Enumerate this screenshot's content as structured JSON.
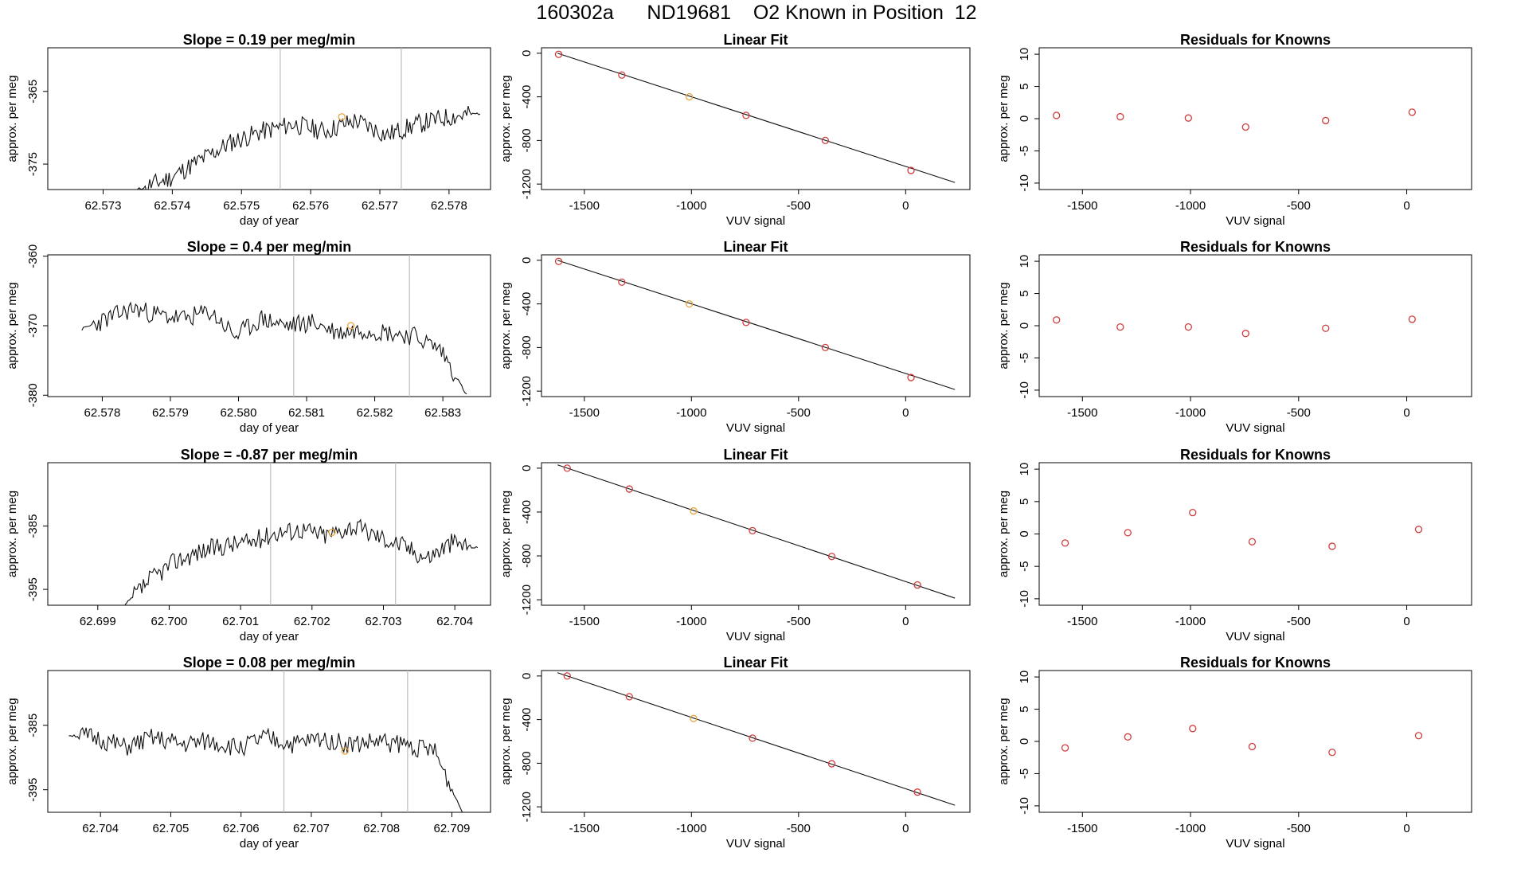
{
  "page": {
    "title": "160302a      ND19681    O2 Known in Position  12"
  },
  "chart_data": [
    {
      "type": "line",
      "title": "Slope =  0.19  per meg/min",
      "xlabel": "day of year",
      "ylabel": "approx. per meg",
      "xlim": [
        62.5722,
        62.5786
      ],
      "ylim": [
        -378.5,
        -359
      ],
      "xticks": [
        "62.573",
        "62.574",
        "62.575",
        "62.576",
        "62.577",
        "62.578"
      ],
      "xtick_values": [
        62.573,
        62.574,
        62.575,
        62.576,
        62.577,
        62.578
      ],
      "yticks": [
        "-375",
        "-365"
      ],
      "ytick_values": [
        -375,
        -365
      ],
      "vlines": [
        62.57556,
        62.57731
      ],
      "highlight_point": {
        "x": 62.57645,
        "y": -368.5
      },
      "series": [
        {
          "x_start": 62.5735,
          "x_end": 62.57845,
          "seed": 11,
          "values": [
            -378.5,
            -377.0,
            -374.5,
            -372.0,
            -370.5,
            -369.5,
            -370.5,
            -369.0,
            -371.0,
            -369.5,
            -368.5,
            -368.0
          ]
        }
      ]
    },
    {
      "type": "scatter",
      "title": "Linear Fit",
      "xlabel": "VUV signal",
      "ylabel": "approx. per meg",
      "xlim": [
        -1700,
        300
      ],
      "ylim": [
        -1250,
        50
      ],
      "xticks": [
        "-1500",
        "-1000",
        "-500",
        "0"
      ],
      "xtick_values": [
        -1500,
        -1000,
        -500,
        0
      ],
      "yticks": [
        "0",
        "-400",
        "-800",
        "-1200"
      ],
      "ytick_values": [
        0,
        -400,
        -800,
        -1200
      ],
      "fit_line": {
        "x": [
          -1625,
          230
        ],
        "y": [
          0,
          -1185
        ]
      },
      "series": [
        {
          "x": [
            -1620,
            -1325,
            -1010,
            -745,
            -375,
            25
          ],
          "y": [
            -10,
            -200,
            -400,
            -570,
            -800,
            -1075
          ],
          "colors": [
            "#d23b3b",
            "#d23b3b",
            "#e8a33d",
            "#d23b3b",
            "#d23b3b",
            "#d23b3b"
          ]
        }
      ]
    },
    {
      "type": "scatter",
      "title": "Residuals for Knowns",
      "xlabel": "VUV signal",
      "ylabel": "approx. per meg",
      "xlim": [
        -1700,
        300
      ],
      "ylim": [
        -11,
        11
      ],
      "xticks": [
        "-1500",
        "-1000",
        "-500",
        "0"
      ],
      "xtick_values": [
        -1500,
        -1000,
        -500,
        0
      ],
      "yticks": [
        "10",
        "5",
        "0",
        "-5",
        "-10"
      ],
      "ytick_values": [
        10,
        5,
        0,
        -5,
        -10
      ],
      "series": [
        {
          "x": [
            -1620,
            -1325,
            -1010,
            -745,
            -375,
            25
          ],
          "y": [
            0.5,
            0.3,
            0.1,
            -1.3,
            -0.3,
            1.0
          ],
          "colors": [
            "#d23b3b",
            "#d23b3b",
            "#d23b3b",
            "#d23b3b",
            "#d23b3b",
            "#d23b3b"
          ]
        }
      ]
    },
    {
      "type": "line",
      "title": "Slope =  0.4  per meg/min",
      "xlabel": "day of year",
      "ylabel": "approx. per meg",
      "xlim": [
        62.5772,
        62.5837
      ],
      "ylim": [
        -380.2,
        -359.8
      ],
      "xticks": [
        "62.578",
        "62.579",
        "62.580",
        "62.581",
        "62.582",
        "62.583"
      ],
      "xtick_values": [
        62.578,
        62.579,
        62.58,
        62.581,
        62.582,
        62.583
      ],
      "yticks": [
        "-360",
        "-370",
        "-380"
      ],
      "ytick_values": [
        -360,
        -370,
        -380
      ],
      "vlines": [
        62.58081,
        62.58251
      ],
      "highlight_point": {
        "x": 62.58165,
        "y": -370.0
      },
      "series": [
        {
          "x_start": 62.5777,
          "x_end": 62.58335,
          "seed": 23,
          "values": [
            -370.5,
            -369.0,
            -367.5,
            -368.5,
            -369.0,
            -368.0,
            -371.5,
            -369.0,
            -370.0,
            -369.5,
            -371.0,
            -370.5,
            -371.0,
            -371.5,
            -373.5,
            -380.0
          ]
        }
      ]
    },
    {
      "type": "scatter",
      "title": "Linear Fit",
      "xlabel": "VUV signal",
      "ylabel": "approx. per meg",
      "xlim": [
        -1700,
        300
      ],
      "ylim": [
        -1250,
        50
      ],
      "xticks": [
        "-1500",
        "-1000",
        "-500",
        "0"
      ],
      "xtick_values": [
        -1500,
        -1000,
        -500,
        0
      ],
      "yticks": [
        "0",
        "-400",
        "-800",
        "-1200"
      ],
      "ytick_values": [
        0,
        -400,
        -800,
        -1200
      ],
      "fit_line": {
        "x": [
          -1625,
          230
        ],
        "y": [
          0,
          -1185
        ]
      },
      "series": [
        {
          "x": [
            -1620,
            -1325,
            -1010,
            -745,
            -375,
            25
          ],
          "y": [
            -10,
            -200,
            -400,
            -570,
            -800,
            -1075
          ],
          "colors": [
            "#d23b3b",
            "#d23b3b",
            "#e8a33d",
            "#d23b3b",
            "#d23b3b",
            "#d23b3b"
          ]
        }
      ]
    },
    {
      "type": "scatter",
      "title": "Residuals for Knowns",
      "xlabel": "VUV signal",
      "ylabel": "approx. per meg",
      "xlim": [
        -1700,
        300
      ],
      "ylim": [
        -11,
        11
      ],
      "xticks": [
        "-1500",
        "-1000",
        "-500",
        "0"
      ],
      "xtick_values": [
        -1500,
        -1000,
        -500,
        0
      ],
      "yticks": [
        "10",
        "5",
        "0",
        "-5",
        "-10"
      ],
      "ytick_values": [
        10,
        5,
        0,
        -5,
        -10
      ],
      "series": [
        {
          "x": [
            -1620,
            -1325,
            -1010,
            -745,
            -375,
            25
          ],
          "y": [
            0.9,
            -0.2,
            -0.2,
            -1.2,
            -0.4,
            1.0
          ],
          "colors": [
            "#d23b3b",
            "#d23b3b",
            "#d23b3b",
            "#d23b3b",
            "#d23b3b",
            "#d23b3b"
          ]
        }
      ]
    },
    {
      "type": "line",
      "title": "Slope =  -0.87  per meg/min",
      "xlabel": "day of year",
      "ylabel": "approx. per meg",
      "xlim": [
        62.6983,
        62.7045
      ],
      "ylim": [
        -397.5,
        -375
      ],
      "xticks": [
        "62.699",
        "62.700",
        "62.701",
        "62.702",
        "62.703",
        "62.704"
      ],
      "xtick_values": [
        62.699,
        62.7,
        62.701,
        62.702,
        62.703,
        62.704
      ],
      "yticks": [
        "-385",
        "-395"
      ],
      "ytick_values": [
        -385,
        -395
      ],
      "vlines": [
        62.70142,
        62.70317
      ],
      "highlight_point": {
        "x": 62.70228,
        "y": -386.0
      },
      "series": [
        {
          "x_start": 62.69938,
          "x_end": 62.70432,
          "seed": 37,
          "values": [
            -397.5,
            -393.5,
            -390.5,
            -389.0,
            -388.0,
            -387.5,
            -386.0,
            -385.5,
            -386.5,
            -385.0,
            -386.5,
            -388.0,
            -390.0,
            -387.5,
            -388.5
          ]
        }
      ]
    },
    {
      "type": "scatter",
      "title": "Linear Fit",
      "xlabel": "VUV signal",
      "ylabel": "approx. per meg",
      "xlim": [
        -1700,
        300
      ],
      "ylim": [
        -1250,
        50
      ],
      "xticks": [
        "-1500",
        "-1000",
        "-500",
        "0"
      ],
      "xtick_values": [
        -1500,
        -1000,
        -500,
        0
      ],
      "yticks": [
        "0",
        "-400",
        "-800",
        "-1200"
      ],
      "ytick_values": [
        0,
        -400,
        -800,
        -1200
      ],
      "fit_line": {
        "x": [
          -1625,
          230
        ],
        "y": [
          30,
          -1185
        ]
      },
      "series": [
        {
          "x": [
            -1580,
            -1290,
            -990,
            -715,
            -345,
            55
          ],
          "y": [
            0,
            -190,
            -390,
            -570,
            -805,
            -1065
          ],
          "colors": [
            "#d23b3b",
            "#d23b3b",
            "#e8a33d",
            "#d23b3b",
            "#d23b3b",
            "#d23b3b"
          ]
        }
      ]
    },
    {
      "type": "scatter",
      "title": "Residuals for Knowns",
      "xlabel": "VUV signal",
      "ylabel": "approx. per meg",
      "xlim": [
        -1700,
        300
      ],
      "ylim": [
        -11,
        11
      ],
      "xticks": [
        "-1500",
        "-1000",
        "-500",
        "0"
      ],
      "xtick_values": [
        -1500,
        -1000,
        -500,
        0
      ],
      "yticks": [
        "10",
        "5",
        "0",
        "-5",
        "-10"
      ],
      "ytick_values": [
        10,
        5,
        0,
        -5,
        -10
      ],
      "series": [
        {
          "x": [
            -1580,
            -1290,
            -990,
            -715,
            -345,
            55
          ],
          "y": [
            -1.4,
            0.2,
            3.3,
            -1.2,
            -1.9,
            0.7
          ],
          "colors": [
            "#d23b3b",
            "#d23b3b",
            "#d23b3b",
            "#d23b3b",
            "#d23b3b",
            "#d23b3b"
          ]
        }
      ]
    },
    {
      "type": "line",
      "title": "Slope =  0.08  per meg/min",
      "xlabel": "day of year",
      "ylabel": "approx. per meg",
      "xlim": [
        62.70325,
        62.70955
      ],
      "ylim": [
        -398.5,
        -376.5
      ],
      "xticks": [
        "62.704",
        "62.705",
        "62.706",
        "62.707",
        "62.708",
        "62.709"
      ],
      "xtick_values": [
        62.704,
        62.705,
        62.706,
        62.707,
        62.708,
        62.709
      ],
      "yticks": [
        "-385",
        "-395"
      ],
      "ytick_values": [
        -385,
        -395
      ],
      "vlines": [
        62.70661,
        62.70837
      ],
      "highlight_point": {
        "x": 62.70748,
        "y": -389.0
      },
      "series": [
        {
          "x_start": 62.70355,
          "x_end": 62.70915,
          "seed": 51,
          "values": [
            -386.5,
            -387.0,
            -388.5,
            -387.0,
            -388.0,
            -387.5,
            -388.5,
            -387.0,
            -388.0,
            -387.0,
            -388.0,
            -387.5,
            -388.0,
            -389.0,
            -398.5
          ]
        }
      ]
    },
    {
      "type": "scatter",
      "title": "Linear Fit",
      "xlabel": "VUV signal",
      "ylabel": "approx. per meg",
      "xlim": [
        -1700,
        300
      ],
      "ylim": [
        -1250,
        50
      ],
      "xticks": [
        "-1500",
        "-1000",
        "-500",
        "0"
      ],
      "xtick_values": [
        -1500,
        -1000,
        -500,
        0
      ],
      "yticks": [
        "0",
        "-400",
        "-800",
        "-1200"
      ],
      "ytick_values": [
        0,
        -400,
        -800,
        -1200
      ],
      "fit_line": {
        "x": [
          -1625,
          230
        ],
        "y": [
          30,
          -1185
        ]
      },
      "series": [
        {
          "x": [
            -1580,
            -1290,
            -990,
            -715,
            -345,
            55
          ],
          "y": [
            0,
            -190,
            -390,
            -570,
            -805,
            -1065
          ],
          "colors": [
            "#d23b3b",
            "#d23b3b",
            "#e8a33d",
            "#d23b3b",
            "#d23b3b",
            "#d23b3b"
          ]
        }
      ]
    },
    {
      "type": "scatter",
      "title": "Residuals for Knowns",
      "xlabel": "VUV signal",
      "ylabel": "approx. per meg",
      "xlim": [
        -1700,
        300
      ],
      "ylim": [
        -11,
        11
      ],
      "xticks": [
        "-1500",
        "-1000",
        "-500",
        "0"
      ],
      "xtick_values": [
        -1500,
        -1000,
        -500,
        0
      ],
      "yticks": [
        "10",
        "5",
        "0",
        "-5",
        "-10"
      ],
      "ytick_values": [
        10,
        5,
        0,
        -5,
        -10
      ],
      "series": [
        {
          "x": [
            -1580,
            -1290,
            -990,
            -715,
            -345,
            55
          ],
          "y": [
            -1.0,
            0.7,
            2.0,
            -0.8,
            -1.7,
            0.9
          ],
          "colors": [
            "#d23b3b",
            "#d23b3b",
            "#d23b3b",
            "#d23b3b",
            "#d23b3b",
            "#d23b3b"
          ]
        }
      ]
    }
  ]
}
